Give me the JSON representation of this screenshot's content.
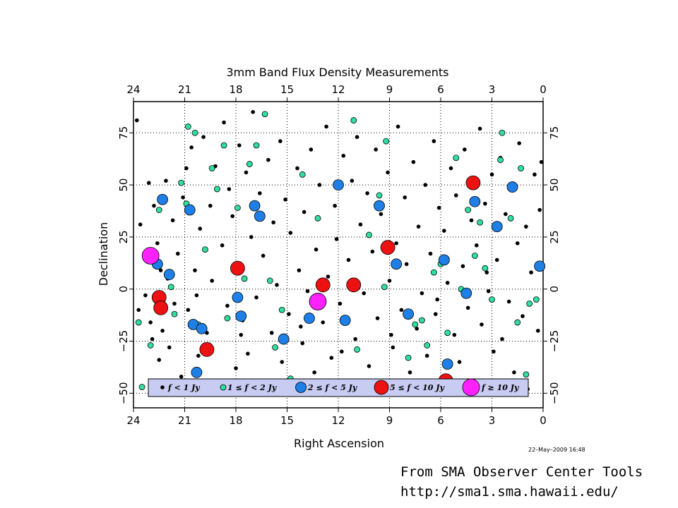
{
  "chart_data": {
    "type": "scatter",
    "title": "3mm Band Flux Density Measurements",
    "xlabel": "Right Ascension",
    "ylabel": "Declination",
    "xlim": [
      24,
      0
    ],
    "ylim": [
      -57,
      90
    ],
    "x_ticks": [
      24,
      21,
      18,
      15,
      12,
      9,
      6,
      3,
      0
    ],
    "x_tick_labels": [
      "24",
      "21",
      "18",
      "15",
      "12",
      "9",
      "6",
      "3",
      "0"
    ],
    "y_ticks": [
      75,
      50,
      25,
      0,
      -25,
      -50
    ],
    "y_tick_labels": [
      "75",
      "50",
      "25",
      "0",
      "−25",
      "−50"
    ],
    "grid": "dotted",
    "timestamp": "22–May–2009 16:48",
    "legend": {
      "placement": "bottom",
      "entries": [
        {
          "label": "f < 1 Jy",
          "color": "#000000"
        },
        {
          "label": "1 ≤ f < 2 Jy",
          "color": "#2fe0a0"
        },
        {
          "label": "2 ≤ f < 5 Jy",
          "color": "#1e7fe6"
        },
        {
          "label": "5 ≤ f < 10 Jy",
          "color": "#ee1111"
        },
        {
          "label": "f ≥ 10 Jy",
          "color": "#ff22ff"
        }
      ]
    },
    "series": [
      {
        "name": "f < 1 Jy",
        "color": "#000000",
        "points": [
          [
            23.8,
            81
          ],
          [
            23.7,
            -10
          ],
          [
            23.6,
            31
          ],
          [
            23.3,
            -3
          ],
          [
            23.1,
            51
          ],
          [
            23.0,
            -16
          ],
          [
            22.9,
            -24
          ],
          [
            22.8,
            40
          ],
          [
            22.7,
            -48
          ],
          [
            22.6,
            22
          ],
          [
            22.5,
            -34
          ],
          [
            22.3,
            -20
          ],
          [
            22.1,
            52
          ],
          [
            22.0,
            5
          ],
          [
            21.9,
            -28
          ],
          [
            21.7,
            33
          ],
          [
            21.6,
            -7
          ],
          [
            21.4,
            17
          ],
          [
            21.2,
            -42
          ],
          [
            21.1,
            44
          ],
          [
            20.9,
            58
          ],
          [
            20.8,
            -10
          ],
          [
            20.6,
            68
          ],
          [
            20.4,
            9
          ],
          [
            20.2,
            -32
          ],
          [
            20.1,
            29
          ],
          [
            19.9,
            73
          ],
          [
            19.7,
            -21
          ],
          [
            19.5,
            40
          ],
          [
            19.4,
            4
          ],
          [
            19.2,
            59
          ],
          [
            19.0,
            -47
          ],
          [
            18.8,
            21
          ],
          [
            18.7,
            80
          ],
          [
            18.5,
            -8
          ],
          [
            18.4,
            48
          ],
          [
            18.2,
            35
          ],
          [
            18.0,
            -38
          ],
          [
            17.9,
            10
          ],
          [
            17.8,
            69
          ],
          [
            17.6,
            -15
          ],
          [
            17.4,
            56
          ],
          [
            17.3,
            -31
          ],
          [
            17.1,
            25
          ],
          [
            17.0,
            85
          ],
          [
            16.8,
            -4
          ],
          [
            16.6,
            46
          ],
          [
            16.4,
            16
          ],
          [
            16.3,
            -44
          ],
          [
            16.1,
            62
          ],
          [
            15.9,
            -21
          ],
          [
            15.8,
            32
          ],
          [
            15.6,
            2
          ],
          [
            15.4,
            71
          ],
          [
            15.3,
            -35
          ],
          [
            15.1,
            43
          ],
          [
            14.9,
            -12
          ],
          [
            14.8,
            27
          ],
          [
            14.6,
            -50
          ],
          [
            14.4,
            58
          ],
          [
            14.3,
            9
          ],
          [
            14.1,
            -26
          ],
          [
            14.0,
            37
          ],
          [
            13.8,
            -1
          ],
          [
            13.6,
            67
          ],
          [
            13.4,
            -40
          ],
          [
            13.3,
            19
          ],
          [
            13.1,
            50
          ],
          [
            12.9,
            -16
          ],
          [
            12.7,
            78
          ],
          [
            12.6,
            6
          ],
          [
            12.4,
            -33
          ],
          [
            12.2,
            40
          ],
          [
            12.1,
            24
          ],
          [
            11.9,
            -7
          ],
          [
            11.7,
            64
          ],
          [
            11.6,
            -45
          ],
          [
            11.4,
            14
          ],
          [
            11.2,
            52
          ],
          [
            11.0,
            -24
          ],
          [
            10.9,
            73
          ],
          [
            10.7,
            31
          ],
          [
            10.5,
            -2
          ],
          [
            10.3,
            46
          ],
          [
            10.2,
            -37
          ],
          [
            10.0,
            18
          ],
          [
            9.8,
            67
          ],
          [
            9.7,
            -14
          ],
          [
            9.5,
            36
          ],
          [
            9.3,
            -48
          ],
          [
            9.1,
            56
          ],
          [
            9.0,
            4
          ],
          [
            8.8,
            -28
          ],
          [
            8.6,
            22
          ],
          [
            8.5,
            78
          ],
          [
            8.3,
            -10
          ],
          [
            8.1,
            44
          ],
          [
            8.0,
            12
          ],
          [
            7.8,
            -40
          ],
          [
            7.6,
            61
          ],
          [
            7.4,
            -19
          ],
          [
            7.3,
            30
          ],
          [
            7.1,
            -2
          ],
          [
            6.9,
            50
          ],
          [
            6.8,
            -32
          ],
          [
            6.6,
            17
          ],
          [
            6.4,
            71
          ],
          [
            6.3,
            -12
          ],
          [
            6.1,
            39
          ],
          [
            5.9,
            -46
          ],
          [
            5.8,
            28
          ],
          [
            5.6,
            3
          ],
          [
            5.4,
            58
          ],
          [
            5.2,
            -22
          ],
          [
            5.1,
            45
          ],
          [
            4.9,
            -35
          ],
          [
            4.7,
            11
          ],
          [
            4.6,
            67
          ],
          [
            4.4,
            -9
          ],
          [
            4.2,
            33
          ],
          [
            4.1,
            -50
          ],
          [
            3.9,
            21
          ],
          [
            3.7,
            77
          ],
          [
            3.6,
            -17
          ],
          [
            3.4,
            41
          ],
          [
            3.2,
            -1
          ],
          [
            3.0,
            55
          ],
          [
            2.9,
            -30
          ],
          [
            2.7,
            14
          ],
          [
            2.5,
            63
          ],
          [
            2.4,
            -24
          ],
          [
            2.2,
            36
          ],
          [
            2.0,
            -6
          ],
          [
            1.9,
            48
          ],
          [
            1.7,
            -40
          ],
          [
            1.5,
            22
          ],
          [
            1.4,
            70
          ],
          [
            1.2,
            -13
          ],
          [
            1.0,
            30
          ],
          [
            0.9,
            -48
          ],
          [
            0.7,
            8
          ],
          [
            0.5,
            55
          ],
          [
            0.3,
            -20
          ],
          [
            0.2,
            38
          ],
          [
            0.1,
            61
          ],
          [
            22.4,
            9
          ],
          [
            20.3,
            -3
          ],
          [
            17.7,
            -22
          ],
          [
            14.2,
            -18
          ],
          [
            11.8,
            -30
          ],
          [
            8.9,
            -22
          ],
          [
            6.2,
            -5
          ],
          [
            3.3,
            8
          ]
        ]
      },
      {
        "name": "1 ≤ f < 2 Jy",
        "color": "#2fe0a0",
        "points": [
          [
            23.7,
            -16
          ],
          [
            23.5,
            -47
          ],
          [
            23.0,
            -27
          ],
          [
            22.5,
            38
          ],
          [
            22.3,
            -9
          ],
          [
            21.8,
            1
          ],
          [
            21.6,
            -12
          ],
          [
            21.2,
            51
          ],
          [
            20.9,
            41
          ],
          [
            20.8,
            78
          ],
          [
            20.4,
            75
          ],
          [
            20.2,
            -17
          ],
          [
            19.8,
            19
          ],
          [
            19.4,
            58
          ],
          [
            19.1,
            48
          ],
          [
            18.7,
            69
          ],
          [
            18.5,
            -14
          ],
          [
            17.9,
            39
          ],
          [
            17.5,
            5
          ],
          [
            17.2,
            60
          ],
          [
            16.8,
            69
          ],
          [
            16.3,
            84
          ],
          [
            16.0,
            4
          ],
          [
            15.7,
            -28
          ],
          [
            15.3,
            -10
          ],
          [
            14.8,
            -43
          ],
          [
            14.1,
            55
          ],
          [
            13.2,
            34
          ],
          [
            11.1,
            81
          ],
          [
            10.9,
            -29
          ],
          [
            10.2,
            26
          ],
          [
            9.6,
            45
          ],
          [
            9.3,
            1
          ],
          [
            9.2,
            71
          ],
          [
            8.7,
            12
          ],
          [
            7.9,
            -33
          ],
          [
            7.5,
            -17
          ],
          [
            7.1,
            -15
          ],
          [
            6.8,
            -27
          ],
          [
            6.4,
            8
          ],
          [
            6.0,
            12
          ],
          [
            5.6,
            -21
          ],
          [
            5.1,
            63
          ],
          [
            4.8,
            0
          ],
          [
            4.4,
            38
          ],
          [
            4.0,
            16
          ],
          [
            3.7,
            32
          ],
          [
            3.4,
            10
          ],
          [
            3.0,
            -5
          ],
          [
            2.5,
            62
          ],
          [
            2.4,
            75
          ],
          [
            1.9,
            34
          ],
          [
            1.5,
            -16
          ],
          [
            1.3,
            58
          ],
          [
            1.0,
            -41
          ],
          [
            0.8,
            -7
          ],
          [
            0.4,
            -5
          ]
        ]
      },
      {
        "name": "2 ≤ f < 5 Jy",
        "color": "#1e7fe6",
        "points": [
          [
            22.6,
            12
          ],
          [
            22.3,
            43
          ],
          [
            21.9,
            7
          ],
          [
            21.0,
            -47
          ],
          [
            20.7,
            38
          ],
          [
            20.5,
            -17
          ],
          [
            20.3,
            -40
          ],
          [
            20.0,
            -19
          ],
          [
            17.9,
            -4
          ],
          [
            17.7,
            -13
          ],
          [
            16.9,
            40
          ],
          [
            16.6,
            35
          ],
          [
            15.2,
            -24
          ],
          [
            13.7,
            -14
          ],
          [
            12.0,
            50
          ],
          [
            11.6,
            -15
          ],
          [
            9.6,
            40
          ],
          [
            8.6,
            12
          ],
          [
            7.9,
            -12
          ],
          [
            5.8,
            14
          ],
          [
            5.6,
            -36
          ],
          [
            5.0,
            -46
          ],
          [
            4.5,
            -2
          ],
          [
            4.0,
            42
          ],
          [
            2.7,
            30
          ],
          [
            1.8,
            49
          ],
          [
            0.2,
            11
          ]
        ]
      },
      {
        "name": "5 ≤ f < 10 Jy",
        "color": "#ee1111",
        "points": [
          [
            22.5,
            -4
          ],
          [
            22.4,
            -9
          ],
          [
            19.7,
            -29
          ],
          [
            17.9,
            10
          ],
          [
            12.9,
            2
          ],
          [
            11.1,
            2
          ],
          [
            9.1,
            20
          ],
          [
            5.7,
            -44
          ],
          [
            4.1,
            51
          ]
        ]
      },
      {
        "name": "f ≥ 10 Jy",
        "color": "#ff22ff",
        "points": [
          [
            23.0,
            16
          ],
          [
            13.2,
            -6
          ]
        ]
      }
    ]
  },
  "credit": {
    "line1": "From SMA Observer Center Tools",
    "line2": "http://sma1.sma.hawaii.edu/"
  }
}
